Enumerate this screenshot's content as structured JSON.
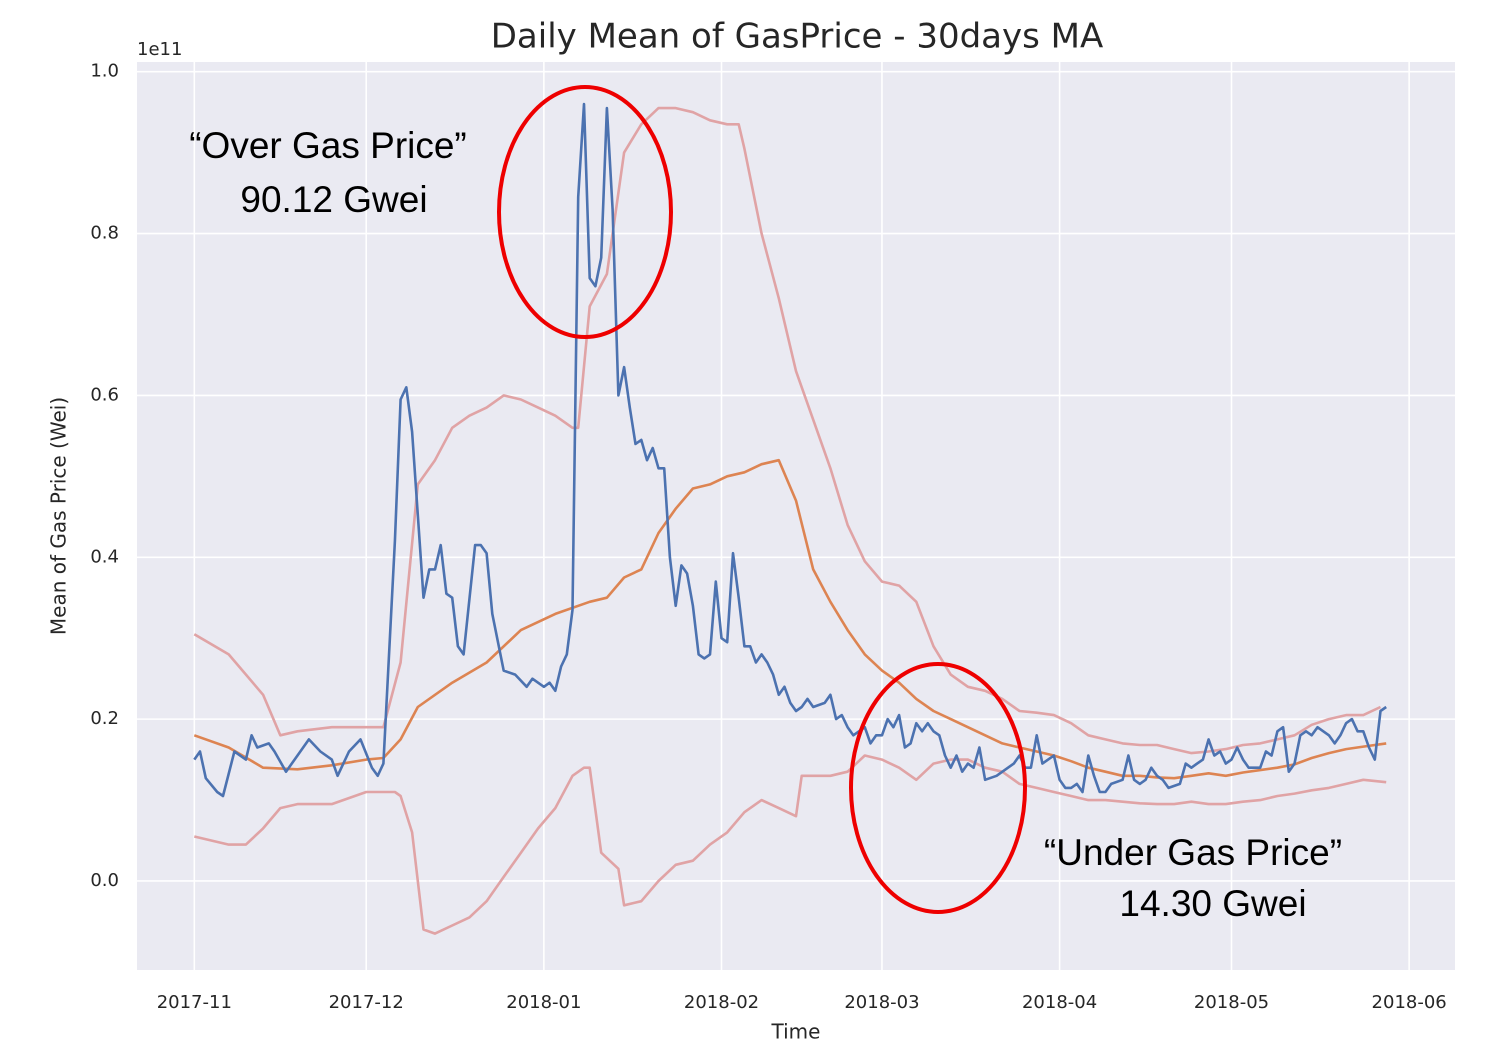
{
  "chart_data": {
    "type": "line",
    "title": "Daily Mean of GasPrice - 30days MA",
    "x_label": "Time",
    "y_label": "Mean of Gas Price (Wei)",
    "y_offset_label": "1e11",
    "xlim": [
      -10,
      220
    ],
    "ylim": [
      -0.11,
      1.012
    ],
    "xticks": [
      {
        "value": 0,
        "label": "2017-11"
      },
      {
        "value": 30,
        "label": "2017-12"
      },
      {
        "value": 61,
        "label": "2018-01"
      },
      {
        "value": 92,
        "label": "2018-02"
      },
      {
        "value": 120,
        "label": "2018-03"
      },
      {
        "value": 151,
        "label": "2018-04"
      },
      {
        "value": 181,
        "label": "2018-05"
      },
      {
        "value": 212,
        "label": "2018-06"
      }
    ],
    "yticks": [
      {
        "value": 0,
        "label": "0.0"
      },
      {
        "value": 0.2,
        "label": "0.2"
      },
      {
        "value": 0.4,
        "label": "0.4"
      },
      {
        "value": 0.6,
        "label": "0.6"
      },
      {
        "value": 0.8,
        "label": "0.8"
      },
      {
        "value": 1,
        "label": "1.0"
      }
    ],
    "grid": true,
    "annotations": [
      {
        "text": "“Over Gas Price”"
      },
      {
        "text": "90.12 Gwei"
      },
      {
        "text": "“Under Gas Price”"
      },
      {
        "text": "14.30 Gwei"
      }
    ],
    "series": [
      {
        "color": "#e0a3a5",
        "x": [
          0,
          6,
          12,
          15,
          18,
          24,
          30,
          33,
          36,
          39,
          42,
          45,
          48,
          51,
          54,
          57,
          60,
          63,
          66,
          67,
          69,
          72,
          75,
          78,
          81,
          84,
          87,
          90,
          93,
          95,
          96,
          99,
          102,
          105,
          108,
          111,
          114,
          117,
          120,
          123,
          126,
          129,
          132,
          135,
          138,
          141,
          144,
          147,
          150,
          153,
          156,
          159,
          162,
          165,
          168,
          171,
          174,
          177,
          180,
          183,
          186,
          189,
          192,
          195,
          198,
          201,
          204,
          207
        ],
        "values": [
          0.305,
          0.28,
          0.23,
          0.18,
          0.185,
          0.19,
          0.19,
          0.19,
          0.27,
          0.49,
          0.52,
          0.56,
          0.575,
          0.585,
          0.6,
          0.595,
          0.585,
          0.575,
          0.56,
          0.56,
          0.71,
          0.75,
          0.9,
          0.935,
          0.955,
          0.955,
          0.95,
          0.94,
          0.935,
          0.935,
          0.905,
          0.8,
          0.72,
          0.63,
          0.57,
          0.51,
          0.44,
          0.395,
          0.37,
          0.365,
          0.345,
          0.29,
          0.255,
          0.24,
          0.235,
          0.225,
          0.21,
          0.208,
          0.205,
          0.195,
          0.18,
          0.175,
          0.17,
          0.168,
          0.168,
          0.163,
          0.158,
          0.16,
          0.163,
          0.168,
          0.17,
          0.175,
          0.18,
          0.193,
          0.2,
          0.205,
          0.205,
          0.215
        ]
      },
      {
        "color": "#e0a3a5",
        "x": [
          0,
          6,
          9,
          12,
          15,
          18,
          24,
          30,
          33,
          35,
          36,
          38,
          40,
          42,
          45,
          48,
          51,
          54,
          57,
          60,
          63,
          66,
          68,
          69,
          71,
          74,
          75,
          78,
          81,
          84,
          87,
          90,
          93,
          96,
          99,
          102,
          105,
          106,
          108,
          111,
          114,
          117,
          120,
          123,
          126,
          129,
          132,
          135,
          138,
          141,
          144,
          147,
          150,
          153,
          156,
          159,
          162,
          165,
          168,
          171,
          174,
          177,
          180,
          183,
          186,
          189,
          192,
          195,
          198,
          201,
          204,
          208
        ],
        "values": [
          0.055,
          0.045,
          0.045,
          0.065,
          0.09,
          0.095,
          0.095,
          0.11,
          0.11,
          0.11,
          0.105,
          0.06,
          -0.06,
          -0.065,
          -0.055,
          -0.045,
          -0.025,
          0.005,
          0.035,
          0.065,
          0.09,
          0.13,
          0.14,
          0.14,
          0.035,
          0.015,
          -0.03,
          -0.025,
          0,
          0.02,
          0.025,
          0.045,
          0.06,
          0.085,
          0.1,
          0.09,
          0.08,
          0.13,
          0.13,
          0.13,
          0.135,
          0.155,
          0.15,
          0.14,
          0.125,
          0.145,
          0.15,
          0.15,
          0.14,
          0.135,
          0.12,
          0.115,
          0.11,
          0.105,
          0.1,
          0.1,
          0.098,
          0.096,
          0.095,
          0.095,
          0.098,
          0.095,
          0.095,
          0.098,
          0.1,
          0.105,
          0.108,
          0.112,
          0.115,
          0.12,
          0.125,
          0.122
        ]
      },
      {
        "color": "#dd8452",
        "x": [
          0,
          6,
          12,
          18,
          24,
          30,
          33,
          36,
          39,
          45,
          51,
          57,
          63,
          69,
          72,
          75,
          78,
          81,
          84,
          87,
          90,
          93,
          96,
          99,
          102,
          105,
          108,
          111,
          114,
          117,
          120,
          123,
          126,
          129,
          132,
          135,
          138,
          141,
          144,
          147,
          150,
          153,
          156,
          159,
          162,
          165,
          168,
          171,
          174,
          177,
          180,
          183,
          186,
          189,
          192,
          195,
          198,
          201,
          204,
          208
        ],
        "values": [
          0.18,
          0.165,
          0.14,
          0.138,
          0.143,
          0.15,
          0.152,
          0.175,
          0.215,
          0.245,
          0.27,
          0.31,
          0.33,
          0.345,
          0.35,
          0.375,
          0.385,
          0.43,
          0.46,
          0.485,
          0.49,
          0.5,
          0.505,
          0.515,
          0.52,
          0.47,
          0.385,
          0.345,
          0.31,
          0.28,
          0.26,
          0.245,
          0.225,
          0.21,
          0.2,
          0.19,
          0.18,
          0.17,
          0.165,
          0.16,
          0.155,
          0.148,
          0.14,
          0.135,
          0.13,
          0.13,
          0.128,
          0.127,
          0.13,
          0.133,
          0.13,
          0.134,
          0.137,
          0.14,
          0.144,
          0.152,
          0.158,
          0.163,
          0.166,
          0.17
        ]
      },
      {
        "color": "#4c72b0",
        "x": [
          0,
          1,
          2,
          4,
          5,
          7,
          9,
          10,
          11,
          13,
          14,
          16,
          18,
          20,
          22,
          24,
          25,
          27,
          29,
          31,
          32,
          33,
          35,
          36,
          37,
          38,
          40,
          41,
          42,
          43,
          44,
          45,
          46,
          47,
          49,
          50,
          51,
          52,
          54,
          56,
          58,
          59,
          61,
          62,
          63,
          64,
          65,
          66,
          67,
          68,
          69,
          70,
          71,
          72,
          73,
          74,
          75,
          76,
          77,
          78,
          79,
          80,
          81,
          82,
          83,
          84,
          85,
          86,
          87,
          88,
          89,
          90,
          91,
          92,
          93,
          94,
          95,
          96,
          97,
          98,
          99,
          100,
          101,
          102,
          103,
          104,
          105,
          106,
          107,
          108,
          110,
          111,
          112,
          113,
          114,
          115,
          116,
          117,
          118,
          119,
          120,
          121,
          122,
          123,
          124,
          125,
          126,
          127,
          128,
          129,
          130,
          131,
          132,
          133,
          134,
          135,
          136,
          137,
          138,
          140,
          142,
          143,
          144,
          145,
          146,
          147,
          148,
          149,
          150,
          151,
          152,
          153,
          154,
          155,
          156,
          157,
          158,
          159,
          160,
          162,
          163,
          164,
          165,
          166,
          167,
          168,
          169,
          170,
          172,
          173,
          174,
          175,
          176,
          177,
          178,
          179,
          180,
          181,
          182,
          183,
          184,
          186,
          187,
          188,
          189,
          190,
          191,
          192,
          193,
          194,
          195,
          196,
          198,
          199,
          200,
          201,
          202,
          203,
          204,
          205,
          206,
          207,
          208
        ],
        "values": [
          0.15,
          0.16,
          0.127,
          0.11,
          0.105,
          0.16,
          0.15,
          0.18,
          0.165,
          0.17,
          0.16,
          0.135,
          0.155,
          0.175,
          0.16,
          0.15,
          0.13,
          0.16,
          0.175,
          0.14,
          0.13,
          0.145,
          0.42,
          0.595,
          0.61,
          0.555,
          0.35,
          0.385,
          0.385,
          0.415,
          0.355,
          0.35,
          0.29,
          0.28,
          0.415,
          0.415,
          0.405,
          0.33,
          0.26,
          0.255,
          0.24,
          0.25,
          0.24,
          0.245,
          0.235,
          0.265,
          0.28,
          0.335,
          0.845,
          0.96,
          0.745,
          0.735,
          0.77,
          0.955,
          0.83,
          0.6,
          0.635,
          0.585,
          0.54,
          0.545,
          0.52,
          0.535,
          0.51,
          0.51,
          0.4,
          0.34,
          0.39,
          0.38,
          0.34,
          0.28,
          0.275,
          0.28,
          0.37,
          0.3,
          0.295,
          0.405,
          0.35,
          0.29,
          0.29,
          0.27,
          0.28,
          0.27,
          0.255,
          0.23,
          0.24,
          0.22,
          0.21,
          0.215,
          0.225,
          0.215,
          0.22,
          0.23,
          0.2,
          0.205,
          0.19,
          0.18,
          0.185,
          0.19,
          0.17,
          0.18,
          0.18,
          0.2,
          0.19,
          0.205,
          0.165,
          0.17,
          0.195,
          0.185,
          0.195,
          0.185,
          0.18,
          0.155,
          0.14,
          0.155,
          0.135,
          0.145,
          0.14,
          0.165,
          0.125,
          0.13,
          0.14,
          0.145,
          0.155,
          0.14,
          0.14,
          0.18,
          0.145,
          0.15,
          0.155,
          0.125,
          0.115,
          0.115,
          0.12,
          0.11,
          0.155,
          0.13,
          0.11,
          0.11,
          0.12,
          0.125,
          0.155,
          0.125,
          0.12,
          0.125,
          0.14,
          0.13,
          0.125,
          0.115,
          0.12,
          0.145,
          0.14,
          0.145,
          0.15,
          0.175,
          0.155,
          0.16,
          0.145,
          0.15,
          0.165,
          0.15,
          0.14,
          0.14,
          0.16,
          0.155,
          0.185,
          0.19,
          0.135,
          0.145,
          0.18,
          0.185,
          0.18,
          0.19,
          0.18,
          0.17,
          0.18,
          0.195,
          0.2,
          0.185,
          0.185,
          0.165,
          0.15,
          0.21,
          0.215
        ]
      }
    ]
  }
}
